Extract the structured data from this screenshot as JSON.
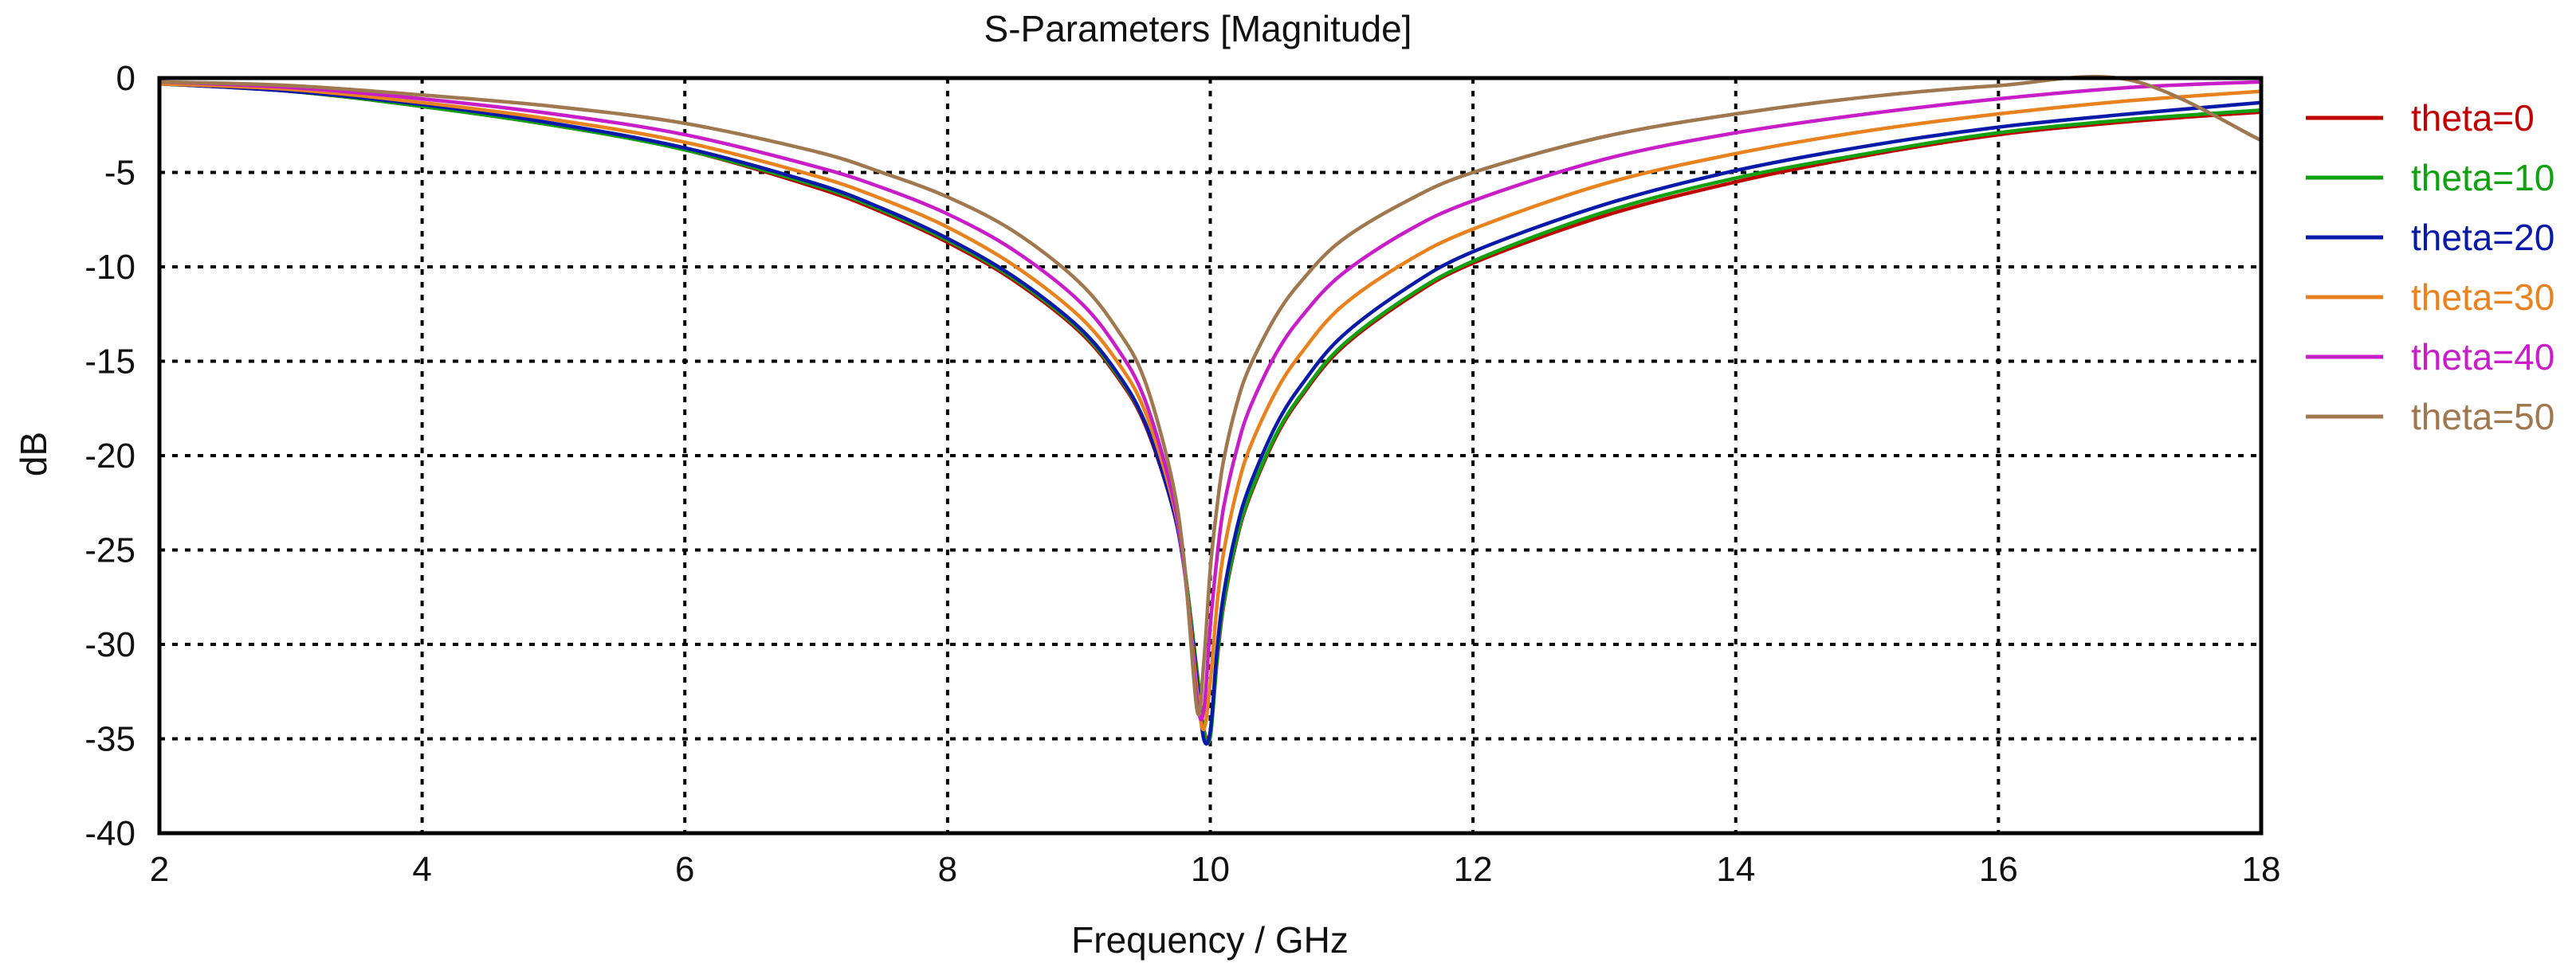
{
  "chart_data": {
    "type": "line",
    "title": "S-Parameters [Magnitude]",
    "xlabel": "Frequency / GHz",
    "ylabel": "dB",
    "xlim": [
      2,
      18
    ],
    "ylim": [
      -40,
      0
    ],
    "xticks": [
      2,
      4,
      6,
      8,
      10,
      12,
      14,
      16,
      18
    ],
    "yticks": [
      0,
      -5,
      -10,
      -15,
      -20,
      -25,
      -30,
      -35,
      -40
    ],
    "grid": true,
    "legend_position": "right",
    "x": [
      2,
      3,
      4,
      5,
      6,
      7,
      7.5,
      8,
      8.5,
      9,
      9.3,
      9.5,
      9.7,
      9.8,
      9.9,
      9.95,
      10,
      10.05,
      10.1,
      10.2,
      10.3,
      10.5,
      10.7,
      11,
      11.5,
      12,
      13,
      14,
      15,
      16,
      17,
      18
    ],
    "series": [
      {
        "name": "theta=0",
        "color": "#c00000",
        "values": [
          -0.3,
          -0.7,
          -1.5,
          -2.5,
          -3.8,
          -5.8,
          -7.1,
          -8.7,
          -10.7,
          -13.4,
          -15.9,
          -18.3,
          -22.4,
          -25.8,
          -31.5,
          -34.5,
          -34.7,
          -31.0,
          -28.0,
          -24.5,
          -22.2,
          -19.0,
          -16.8,
          -14.3,
          -11.7,
          -9.8,
          -7.3,
          -5.5,
          -4.1,
          -3.0,
          -2.3,
          -1.8
        ]
      },
      {
        "name": "theta=10",
        "color": "#10a010",
        "values": [
          -0.3,
          -0.7,
          -1.5,
          -2.5,
          -3.8,
          -5.7,
          -7.0,
          -8.6,
          -10.6,
          -13.3,
          -15.8,
          -18.2,
          -22.3,
          -25.7,
          -31.6,
          -34.6,
          -34.9,
          -30.9,
          -27.9,
          -24.4,
          -22.1,
          -18.9,
          -16.7,
          -14.2,
          -11.6,
          -9.7,
          -7.1,
          -5.3,
          -4.0,
          -2.9,
          -2.2,
          -1.7
        ]
      },
      {
        "name": "theta=20",
        "color": "#0a1aa8",
        "values": [
          -0.3,
          -0.7,
          -1.4,
          -2.4,
          -3.7,
          -5.6,
          -6.9,
          -8.5,
          -10.5,
          -13.2,
          -15.7,
          -18.2,
          -22.4,
          -25.9,
          -32.0,
          -35.0,
          -34.6,
          -30.4,
          -27.4,
          -23.9,
          -21.6,
          -18.4,
          -16.2,
          -13.7,
          -11.1,
          -9.2,
          -6.7,
          -4.9,
          -3.6,
          -2.6,
          -1.9,
          -1.3
        ]
      },
      {
        "name": "theta=30",
        "color": "#e8821e",
        "values": [
          -0.3,
          -0.6,
          -1.3,
          -2.2,
          -3.4,
          -5.2,
          -6.4,
          -7.9,
          -9.9,
          -12.6,
          -15.1,
          -17.6,
          -22.0,
          -25.8,
          -32.5,
          -34.5,
          -32.0,
          -28.0,
          -25.2,
          -21.9,
          -19.6,
          -16.6,
          -14.5,
          -12.1,
          -9.7,
          -8.0,
          -5.6,
          -4.0,
          -2.8,
          -1.9,
          -1.2,
          -0.7
        ]
      },
      {
        "name": "theta=40",
        "color": "#c81ec8",
        "values": [
          -0.2,
          -0.5,
          -1.1,
          -1.9,
          -3.0,
          -4.7,
          -5.8,
          -7.2,
          -9.1,
          -11.8,
          -14.4,
          -17.0,
          -21.7,
          -25.8,
          -33.0,
          -33.5,
          -29.0,
          -25.5,
          -22.8,
          -19.7,
          -17.5,
          -14.6,
          -12.6,
          -10.4,
          -8.1,
          -6.5,
          -4.3,
          -2.9,
          -1.9,
          -1.1,
          -0.5,
          -0.2
        ]
      },
      {
        "name": "theta=50",
        "color": "#a07850",
        "values": [
          -0.2,
          -0.4,
          -0.9,
          -1.5,
          -2.4,
          -3.9,
          -5.0,
          -6.3,
          -8.1,
          -10.8,
          -13.4,
          -16.0,
          -21.0,
          -25.5,
          -33.5,
          -31.0,
          -26.0,
          -22.8,
          -20.3,
          -17.3,
          -15.3,
          -12.6,
          -10.7,
          -8.6,
          -6.5,
          -5.0,
          -3.1,
          -1.9,
          -1.0,
          -0.4,
          -0.1,
          -3.3
        ]
      }
    ]
  }
}
